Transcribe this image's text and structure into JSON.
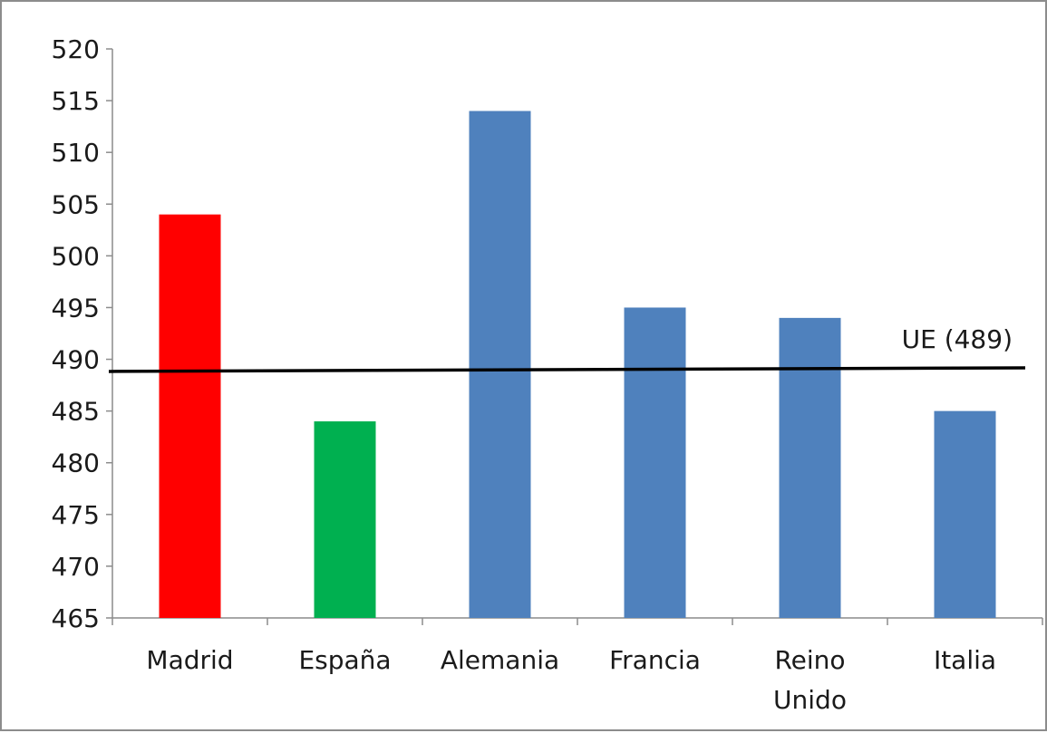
{
  "chart_data": {
    "type": "bar",
    "title": "",
    "xlabel": "",
    "ylabel": "",
    "categories": [
      "Madrid",
      "España",
      "Alemania",
      "Francia",
      "Reino Unido",
      "Italia"
    ],
    "category_lines": [
      [
        "Madrid"
      ],
      [
        "España"
      ],
      [
        "Alemania"
      ],
      [
        "Francia"
      ],
      [
        "Reino",
        "Unido"
      ],
      [
        "Italia"
      ]
    ],
    "values": [
      504,
      484,
      514,
      495,
      494,
      485
    ],
    "bar_colors": [
      "#ff0000",
      "#00b050",
      "#4f81bd",
      "#4f81bd",
      "#4f81bd",
      "#4f81bd"
    ],
    "ylim": [
      465,
      520
    ],
    "y_ticks": [
      465,
      470,
      475,
      480,
      485,
      490,
      495,
      500,
      505,
      510,
      515,
      520
    ],
    "grid": false,
    "legend": "none",
    "reference_line": {
      "label": "UE (489)",
      "value": 489,
      "color": "#000000"
    },
    "axis_color": "#8c8c8c",
    "frame_color": "#8c8c8c"
  }
}
